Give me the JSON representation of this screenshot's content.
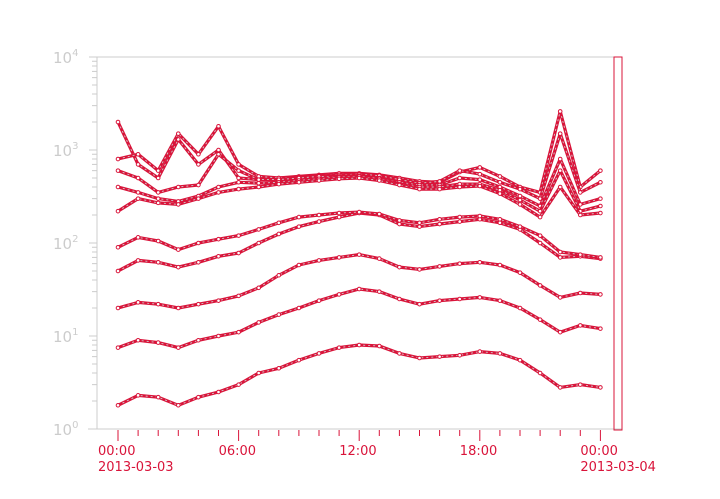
{
  "chart_data": {
    "type": "line",
    "title": "",
    "xlabel": "",
    "ylabel": "",
    "yscale": "log",
    "ylim": [
      1,
      10000
    ],
    "xlim_hours": [
      0,
      24.3
    ],
    "grid": false,
    "y_ticks": [
      {
        "base": "10",
        "exp": "0",
        "value": 1
      },
      {
        "base": "10",
        "exp": "1",
        "value": 10
      },
      {
        "base": "10",
        "exp": "2",
        "value": 100
      },
      {
        "base": "10",
        "exp": "3",
        "value": 1000
      },
      {
        "base": "10",
        "exp": "4",
        "value": 10000
      }
    ],
    "x_ticks": [
      {
        "hour": 0,
        "time": "00:00",
        "date": "2013-03-03"
      },
      {
        "hour": 6,
        "time": "06:00",
        "date": ""
      },
      {
        "hour": 12,
        "time": "12:00",
        "date": ""
      },
      {
        "hour": 18,
        "time": "18:00",
        "date": ""
      },
      {
        "hour": 24,
        "time": "00:00",
        "date": "2013-03-04"
      }
    ],
    "x_hours": [
      0,
      1,
      2,
      3,
      4,
      5,
      6,
      7,
      8,
      9,
      10,
      11,
      12,
      13,
      14,
      15,
      16,
      17,
      18,
      19,
      20,
      21,
      22,
      23,
      24
    ],
    "colors": {
      "series": "#d9143a",
      "axis": "#cccccc",
      "marker": "#cccccc"
    },
    "series": [
      {
        "values": [
          1.8,
          2.3,
          2.2,
          1.8,
          2.2,
          2.5,
          3.0,
          4.0,
          4.5,
          5.5,
          6.5,
          7.5,
          8.0,
          7.8,
          6.5,
          5.8,
          6.0,
          6.2,
          6.8,
          6.5,
          5.5,
          4.0,
          2.8,
          3.0,
          2.8
        ]
      },
      {
        "values": [
          7.5,
          9,
          8.5,
          7.5,
          9,
          10,
          11,
          14,
          17,
          20,
          24,
          28,
          32,
          30,
          25,
          22,
          24,
          25,
          26,
          24,
          20,
          15,
          11,
          13,
          12
        ]
      },
      {
        "values": [
          20,
          23,
          22,
          20,
          22,
          24,
          27,
          33,
          45,
          58,
          65,
          70,
          75,
          68,
          55,
          52,
          56,
          60,
          62,
          58,
          48,
          35,
          26,
          29,
          28
        ]
      },
      {
        "values": [
          50,
          65,
          62,
          55,
          62,
          72,
          78,
          100,
          125,
          150,
          170,
          190,
          210,
          200,
          160,
          150,
          160,
          170,
          180,
          165,
          140,
          100,
          70,
          72,
          68
        ]
      },
      {
        "values": [
          90,
          115,
          105,
          85,
          100,
          110,
          120,
          140,
          165,
          190,
          200,
          210,
          215,
          205,
          175,
          165,
          180,
          190,
          195,
          180,
          150,
          120,
          80,
          75,
          70
        ]
      },
      {
        "values": [
          2000,
          700,
          500,
          1300,
          700,
          1000,
          500,
          480,
          500,
          520,
          540,
          560,
          560,
          540,
          500,
          460,
          450,
          580,
          650,
          520,
          400,
          350,
          2600,
          400,
          600
        ]
      },
      {
        "values": [
          800,
          900,
          600,
          1500,
          900,
          1800,
          700,
          520,
          500,
          510,
          530,
          540,
          550,
          530,
          480,
          440,
          460,
          600,
          550,
          450,
          380,
          300,
          1500,
          350,
          450
        ]
      },
      {
        "values": [
          600,
          500,
          350,
          400,
          420,
          900,
          600,
          480,
          480,
          500,
          520,
          520,
          530,
          500,
          450,
          420,
          420,
          500,
          480,
          400,
          320,
          250,
          800,
          260,
          300
        ]
      },
      {
        "values": [
          400,
          350,
          300,
          280,
          320,
          400,
          450,
          440,
          450,
          470,
          490,
          510,
          520,
          490,
          430,
          400,
          400,
          430,
          430,
          370,
          290,
          220,
          600,
          220,
          250
        ]
      },
      {
        "values": [
          220,
          300,
          270,
          260,
          300,
          350,
          380,
          400,
          430,
          450,
          470,
          490,
          500,
          470,
          420,
          380,
          380,
          400,
          410,
          340,
          260,
          190,
          400,
          200,
          210
        ]
      }
    ]
  }
}
